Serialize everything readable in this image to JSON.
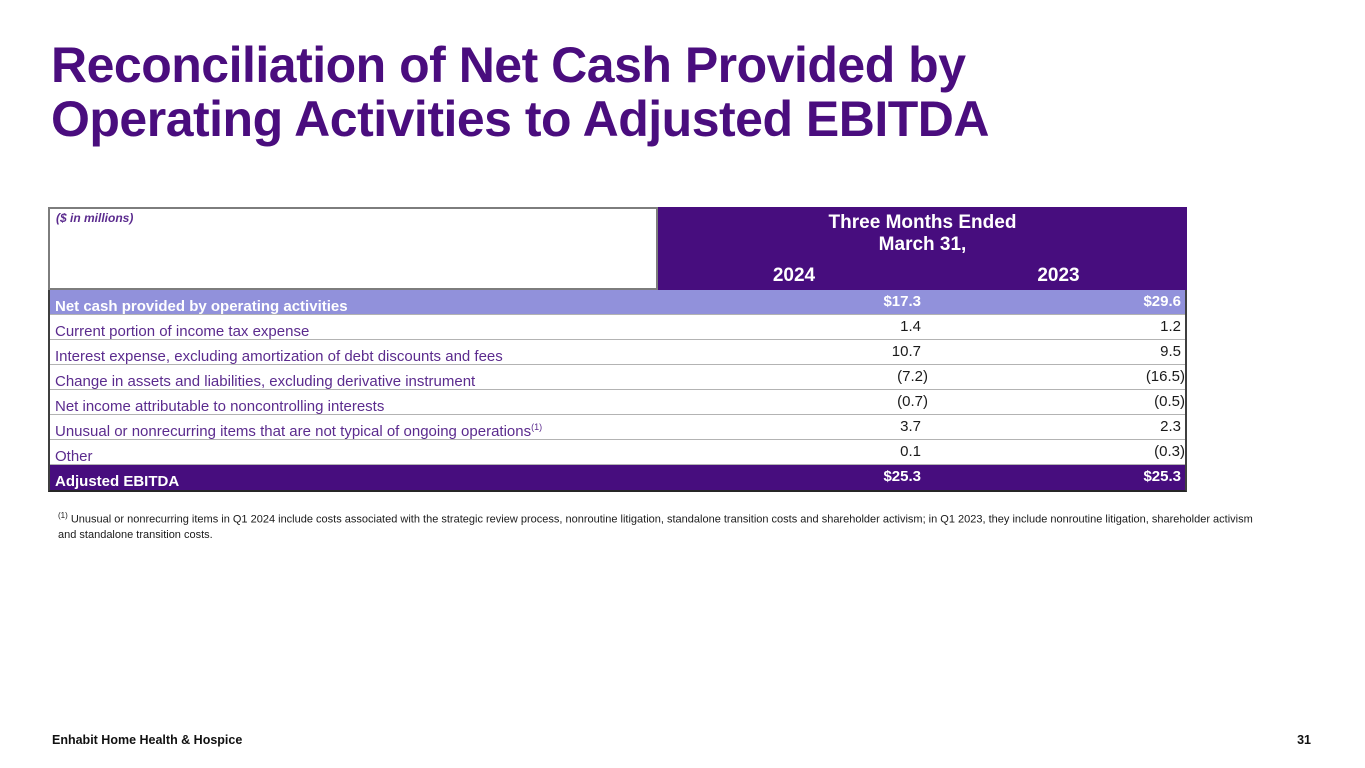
{
  "slide": {
    "title_line1": "Reconciliation of Net Cash Provided by",
    "title_line2": "Operating Activities to Adjusted EBITDA"
  },
  "table": {
    "units_note": "($ in millions)",
    "header": {
      "period_line1": "Three Months Ended",
      "period_line2": "March 31,",
      "col_2024": "2024",
      "col_2023": "2023"
    },
    "rows": [
      {
        "label": "Net cash provided by operating activities",
        "sup": "",
        "v2024": "$17.3",
        "v2023": "$29.6"
      },
      {
        "label": "Current portion of income tax expense",
        "sup": "",
        "v2024": "1.4",
        "v2023": "1.2"
      },
      {
        "label": "Interest expense, excluding amortization of debt discounts and fees",
        "sup": "",
        "v2024": "10.7",
        "v2023": "9.5"
      },
      {
        "label": "Change in assets and liabilities, excluding derivative instrument",
        "sup": "",
        "v2024": "(7.2)",
        "v2023": "(16.5)"
      },
      {
        "label": "Net income attributable to noncontrolling interests",
        "sup": "",
        "v2024": "(0.7)",
        "v2023": "(0.5)"
      },
      {
        "label": "Unusual or nonrecurring items that are not typical of ongoing operations",
        "sup": "(1)",
        "v2024": "3.7",
        "v2023": "2.3"
      },
      {
        "label": "Other",
        "sup": "",
        "v2024": "0.1",
        "v2023": "(0.3)"
      },
      {
        "label": "Adjusted EBITDA",
        "sup": "",
        "v2024": "$25.3",
        "v2023": "$25.3"
      }
    ]
  },
  "footnote": {
    "marker": "(1)",
    "line1": "Unusual or nonrecurring items in Q1 2024 include costs associated with the strategic review process, nonroutine litigation, standalone transition costs and shareholder activism; in Q1 2023, they include nonroutine litigation, shareholder activism",
    "line2": "and standalone transition costs."
  },
  "footer": {
    "company": "Enhabit Home Health & Hospice",
    "page": "31"
  },
  "colors": {
    "title_purple": "#4A0D7E",
    "header_purple": "#470D7E",
    "highlight_periwinkle": "#9191DB",
    "label_purple": "#5B2B8E",
    "value_black": "#1a1a1a"
  }
}
